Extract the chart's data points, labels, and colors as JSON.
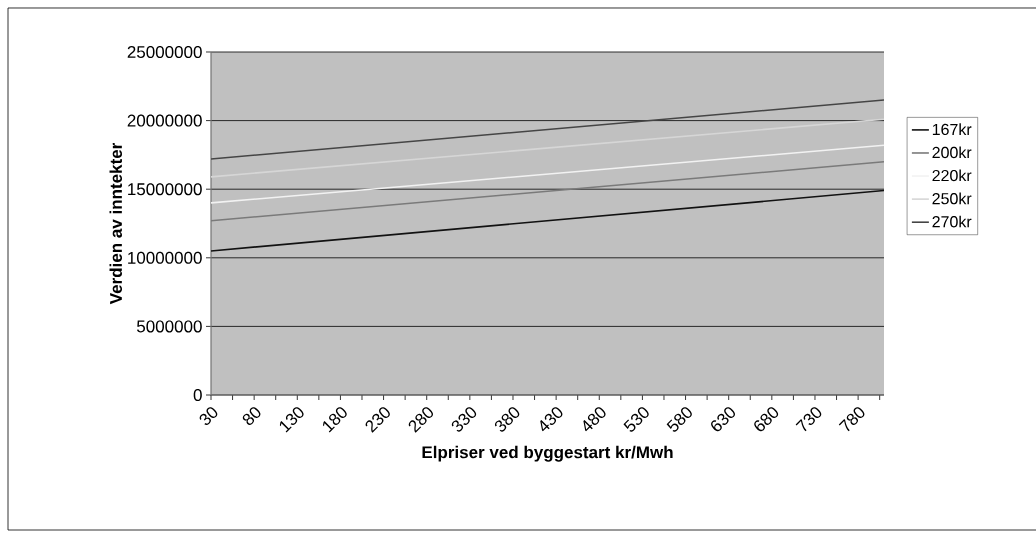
{
  "chart_data": {
    "type": "line",
    "xlabel": "Elpriser ved byggestart kr/Mwh",
    "ylabel": "Verdien av inntekter",
    "x": [
      30,
      810
    ],
    "series": [
      {
        "name": "167kr",
        "color": "#111111",
        "values": [
          10500000,
          14900000
        ]
      },
      {
        "name": "200kr",
        "color": "#7a7a7a",
        "values": [
          12700000,
          17000000
        ]
      },
      {
        "name": "220kr",
        "color": "#f2f2f2",
        "values": [
          14000000,
          18200000
        ]
      },
      {
        "name": "250kr",
        "color": "#d6d6d6",
        "values": [
          15900000,
          20100000
        ]
      },
      {
        "name": "270kr",
        "color": "#454545",
        "values": [
          17200000,
          21500000
        ]
      }
    ],
    "xlim": [
      30,
      810
    ],
    "xticks": [
      30,
      {
        "value": 55,
        "label": null
      },
      80,
      {
        "value": 105,
        "label": null
      },
      130,
      {
        "value": 155,
        "label": null
      },
      180,
      {
        "value": 205,
        "label": null
      },
      230,
      {
        "value": 255,
        "label": null
      },
      280,
      {
        "value": 305,
        "label": null
      },
      330,
      {
        "value": 355,
        "label": null
      },
      380,
      {
        "value": 405,
        "label": null
      },
      430,
      {
        "value": 455,
        "label": null
      },
      480,
      {
        "value": 505,
        "label": null
      },
      530,
      {
        "value": 555,
        "label": null
      },
      580,
      {
        "value": 605,
        "label": null
      },
      630,
      {
        "value": 655,
        "label": null
      },
      680,
      {
        "value": 705,
        "label": null
      },
      730,
      {
        "value": 755,
        "label": null
      },
      780,
      {
        "value": 805,
        "label": null
      }
    ],
    "ylim": [
      0,
      25000000
    ],
    "yticks": [
      0,
      5000000,
      10000000,
      15000000,
      20000000,
      25000000
    ],
    "grid": "y",
    "legend": "right"
  }
}
